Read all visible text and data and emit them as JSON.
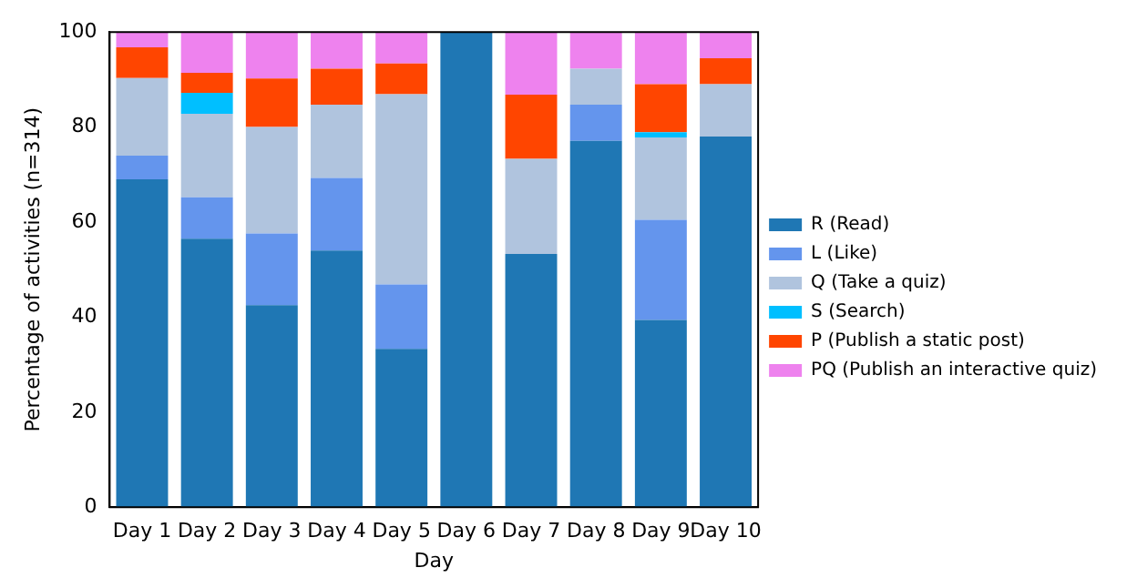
{
  "chart_data": {
    "type": "bar",
    "stacked": true,
    "xlabel": "Day",
    "ylabel": "Percentage of activities (n=314)",
    "categories": [
      "Day 1",
      "Day 2",
      "Day 3",
      "Day 4",
      "Day 5",
      "Day 6",
      "Day 7",
      "Day 8",
      "Day 9",
      "Day 10"
    ],
    "series": [
      {
        "name": "R (Read)",
        "color": "#1f77b4",
        "values": [
          69,
          56.5,
          42.5,
          54,
          33.3,
          100,
          53.3,
          77.1,
          39.4,
          78
        ]
      },
      {
        "name": "L (Like)",
        "color": "#6495ed",
        "values": [
          5,
          8.7,
          15.1,
          15.3,
          13.6,
          0,
          0,
          7.6,
          21.1,
          0
        ]
      },
      {
        "name": "Q (Take a quiz)",
        "color": "#b0c4de",
        "values": [
          16.3,
          17.6,
          22.4,
          15.4,
          40,
          0,
          20,
          7.6,
          17.3,
          11
        ]
      },
      {
        "name": "S (Search)",
        "color": "#00bfff",
        "values": [
          0,
          4.4,
          0,
          0,
          0,
          0,
          0,
          0,
          1.1,
          0
        ]
      },
      {
        "name": "P (Publish a static post)",
        "color": "#ff4500",
        "values": [
          6.5,
          4.2,
          10.2,
          7.6,
          6.5,
          0,
          13.5,
          0,
          10.1,
          5.5
        ]
      },
      {
        "name": "PQ (Publish an interactive quiz)",
        "color": "#ee82ee",
        "values": [
          3.2,
          8.6,
          9.8,
          7.7,
          6.6,
          0,
          13.2,
          7.7,
          11,
          5.5
        ]
      }
    ],
    "ylim": [
      0,
      100
    ],
    "yticks": [
      0,
      20,
      40,
      60,
      80,
      100
    ],
    "grid": false,
    "legend": "right"
  }
}
